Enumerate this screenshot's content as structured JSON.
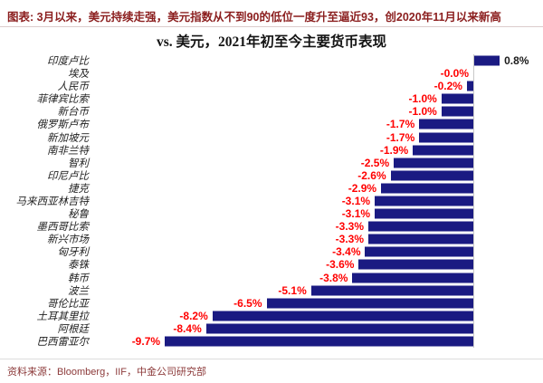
{
  "header": {
    "text": "图表: 3月以来，美元持续走强，美元指数从不到90的低位一度升至逼近93，创2020年11月以来新高"
  },
  "chart_data": {
    "type": "bar",
    "orientation": "horizontal",
    "title": "vs. 美元，2021年初至今主要货币表现",
    "unit": "%",
    "baseline": 0,
    "categories": [
      "印度卢比",
      "埃及",
      "人民币",
      "菲律宾比索",
      "新台币",
      "俄罗斯卢布",
      "新加坡元",
      "南非兰特",
      "智利",
      "印尼卢比",
      "捷克",
      "马来西亚林吉特",
      "秘鲁",
      "墨西哥比索",
      "新兴市场",
      "匈牙利",
      "泰铢",
      "韩币",
      "波兰",
      "哥伦比亚",
      "土耳其里拉",
      "阿根廷",
      "巴西雷亚尔"
    ],
    "values": [
      0.8,
      -0.0,
      -0.2,
      -1.0,
      -1.0,
      -1.7,
      -1.7,
      -1.9,
      -2.5,
      -2.6,
      -2.9,
      -3.1,
      -3.1,
      -3.3,
      -3.3,
      -3.4,
      -3.6,
      -3.8,
      -5.1,
      -6.5,
      -8.2,
      -8.4,
      -9.7
    ],
    "labels": [
      "0.8%",
      "-0.0%",
      "-0.2%",
      "-1.0%",
      "-1.0%",
      "-1.7%",
      "-1.7%",
      "-1.9%",
      "-2.5%",
      "-2.6%",
      "-2.9%",
      "-3.1%",
      "-3.1%",
      "-3.3%",
      "-3.3%",
      "-3.4%",
      "-3.6%",
      "-3.8%",
      "-5.1%",
      "-6.5%",
      "-8.2%",
      "-8.4%",
      "-9.7%"
    ],
    "xlim": [
      -10.5,
      1.5
    ],
    "grid": false,
    "legend": "none",
    "bar_color": "#1A1A82",
    "negative_label_color": "#FF0000",
    "positive_label_color": "#1A1A1A",
    "axis_color": "#C8C8C8"
  },
  "footer": {
    "text": "资料来源：Bloomberg，IIF，中金公司研究部"
  }
}
